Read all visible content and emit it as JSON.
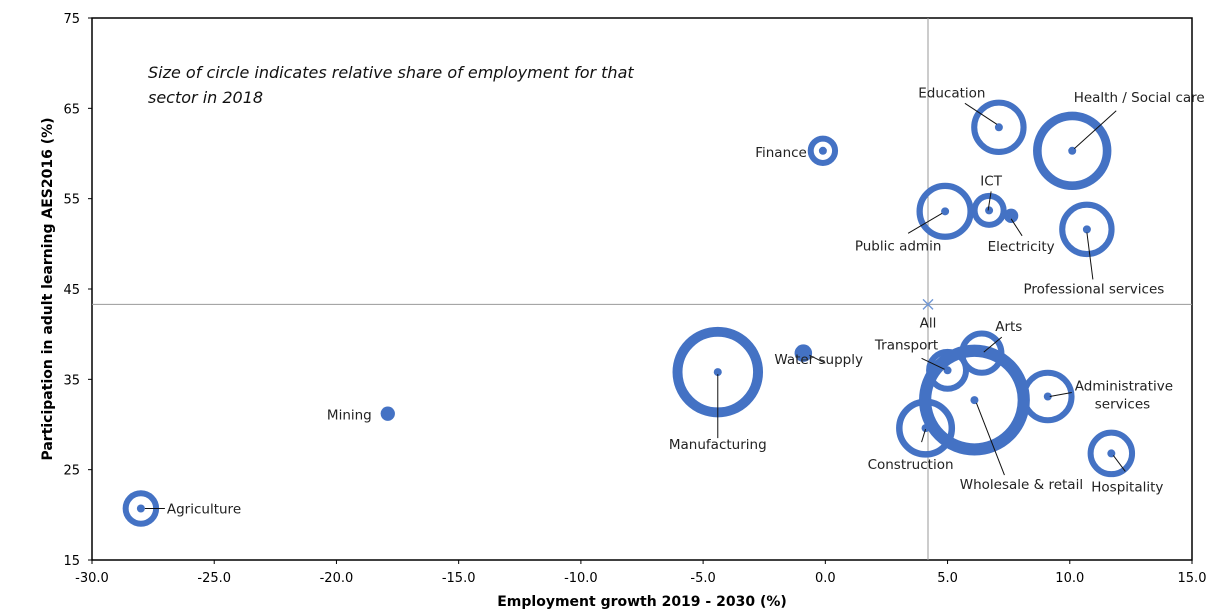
{
  "chart_data": {
    "type": "scatter",
    "subtype": "bubble",
    "title": "",
    "xlabel": "Employment growth 2019 - 2030 (%)",
    "ylabel": "Participation in adult learning AES2016 (%)",
    "xlim": [
      -30,
      15
    ],
    "ylim": [
      15,
      75
    ],
    "xticks": [
      -30,
      -25,
      -20,
      -15,
      -10,
      -5,
      0,
      5,
      10,
      15
    ],
    "yticks": [
      15,
      25,
      35,
      45,
      55,
      65,
      75
    ],
    "xtick_labels": [
      "-30.0",
      "-25.0",
      "-20.0",
      "-15.0",
      "-10.0",
      "-5.0",
      "0.0",
      "5.0",
      "10.0",
      "15.0"
    ],
    "ytick_labels": [
      "15",
      "25",
      "35",
      "45",
      "55",
      "65",
      "75"
    ],
    "grid": false,
    "annotation_lines": [
      "Size of circle indicates relative share of employment for that",
      "sector in 2018"
    ],
    "bubble_color": "#4472c4",
    "reference_point": {
      "name": "All",
      "x": 4.2,
      "y": 43.3
    },
    "points": [
      {
        "name": "Agriculture",
        "x": -28.0,
        "y": 20.7,
        "size": 1.3
      },
      {
        "name": "Mining",
        "x": -17.9,
        "y": 31.2,
        "size": 0.2
      },
      {
        "name": "Manufacturing",
        "x": -4.4,
        "y": 35.8,
        "size": 8.0
      },
      {
        "name": "Water supply",
        "x": -0.9,
        "y": 37.9,
        "size": 0.3
      },
      {
        "name": "Finance",
        "x": -0.1,
        "y": 60.3,
        "size": 0.9
      },
      {
        "name": "Education",
        "x": 7.1,
        "y": 62.9,
        "size": 3.0
      },
      {
        "name": "Health / Social care",
        "x": 10.1,
        "y": 60.3,
        "size": 6.0
      },
      {
        "name": "ICT",
        "x": 6.7,
        "y": 53.7,
        "size": 1.2
      },
      {
        "name": "Electricity",
        "x": 7.6,
        "y": 53.1,
        "size": 0.2
      },
      {
        "name": "Public admin",
        "x": 4.9,
        "y": 53.6,
        "size": 3.2
      },
      {
        "name": "Professional services",
        "x": 10.7,
        "y": 51.6,
        "size": 3.0
      },
      {
        "name": "Arts",
        "x": 6.4,
        "y": 37.9,
        "size": 2.0
      },
      {
        "name": "Transport",
        "x": 5.0,
        "y": 36.0,
        "size": 1.8
      },
      {
        "name": "Wholesale & retail",
        "x": 6.1,
        "y": 32.7,
        "size": 12.0
      },
      {
        "name": "Administrative services",
        "x": 9.1,
        "y": 33.1,
        "size": 2.8
      },
      {
        "name": "Construction",
        "x": 4.1,
        "y": 29.6,
        "size": 3.4
      },
      {
        "name": "Hospitality",
        "x": 11.7,
        "y": 26.8,
        "size": 2.2
      }
    ]
  }
}
